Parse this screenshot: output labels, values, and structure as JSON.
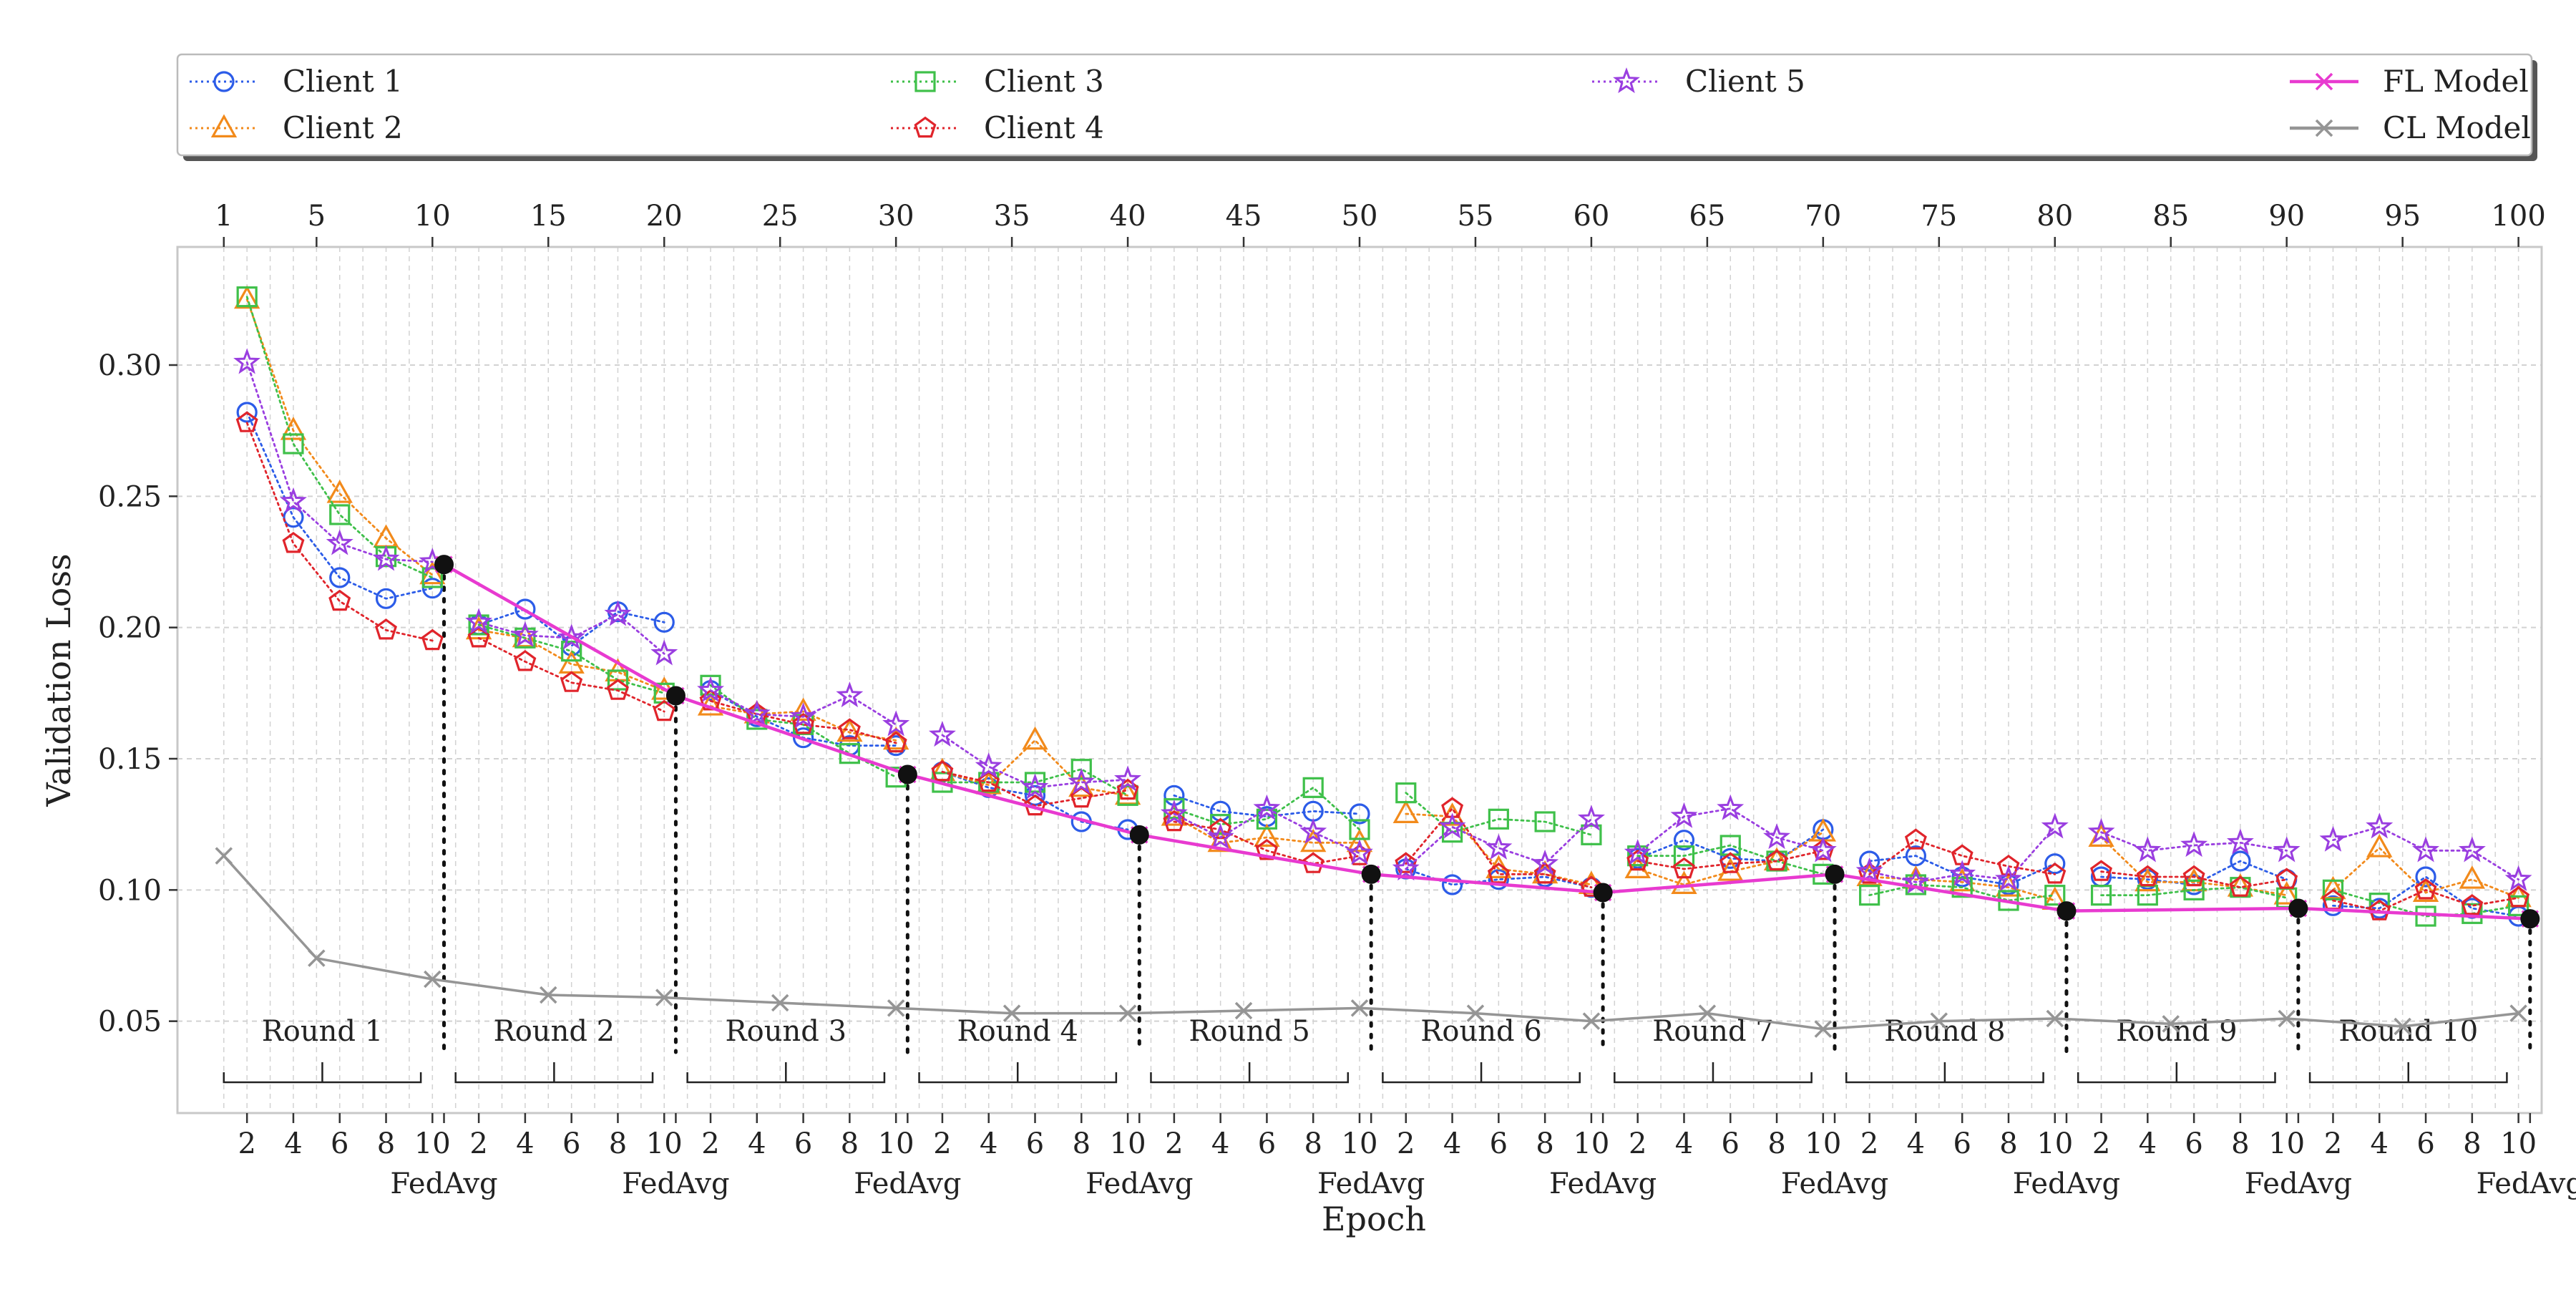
{
  "chart_data": {
    "type": "line",
    "xlabel": "Epoch",
    "ylabel": "Validation Loss",
    "ylim": [
      0.015,
      0.345
    ],
    "yticks": [
      0.05,
      0.1,
      0.15,
      0.2,
      0.25,
      0.3
    ],
    "ytick_labels": [
      "0.05",
      "0.10",
      "0.15",
      "0.20",
      "0.25",
      "0.30"
    ],
    "xlim": [
      -1,
      101
    ],
    "top_xticks": [
      1,
      5,
      10,
      15,
      20,
      25,
      30,
      35,
      40,
      45,
      50,
      55,
      60,
      65,
      70,
      75,
      80,
      85,
      90,
      95,
      100
    ],
    "bottom_tick_labels": [
      "2",
      "4",
      "6",
      "8",
      "10"
    ],
    "aggregation_label": "FedAvg",
    "rounds": [
      "Round 1",
      "Round 2",
      "Round 3",
      "Round 4",
      "Round 5",
      "Round 6",
      "Round 7",
      "Round 8",
      "Round 9",
      "Round 10"
    ],
    "grid": true,
    "legend_position": "top",
    "series": [
      {
        "name": "Client 1",
        "marker": "circle",
        "color": "#2c5ce8",
        "linestyle": "dotted",
        "rounds": [
          [
            0.282,
            0.242,
            0.219,
            0.211,
            0.215
          ],
          [
            0.201,
            0.207,
            0.193,
            0.206,
            0.202
          ],
          [
            0.176,
            0.166,
            0.158,
            0.155,
            0.155
          ],
          [
            0.145,
            0.139,
            0.136,
            0.126,
            0.123
          ],
          [
            0.136,
            0.13,
            0.128,
            0.13,
            0.129
          ],
          [
            0.108,
            0.102,
            0.104,
            0.105,
            0.101
          ],
          [
            0.112,
            0.119,
            0.112,
            0.111,
            0.123
          ],
          [
            0.111,
            0.113,
            0.105,
            0.102,
            0.11
          ],
          [
            0.105,
            0.104,
            0.102,
            0.111,
            0.104
          ],
          [
            0.094,
            0.093,
            0.105,
            0.093,
            0.09
          ]
        ]
      },
      {
        "name": "Client 2",
        "marker": "triangle",
        "color": "#f28a1b",
        "linestyle": "dotted",
        "rounds": [
          [
            0.325,
            0.275,
            0.251,
            0.234,
            0.22
          ],
          [
            0.199,
            0.196,
            0.186,
            0.183,
            0.176
          ],
          [
            0.17,
            0.167,
            0.168,
            0.16,
            0.157
          ],
          [
            0.145,
            0.14,
            0.157,
            0.139,
            0.136
          ],
          [
            0.128,
            0.118,
            0.12,
            0.118,
            0.118
          ],
          [
            0.129,
            0.128,
            0.108,
            0.106,
            0.102
          ],
          [
            0.108,
            0.102,
            0.107,
            0.111,
            0.122
          ],
          [
            0.105,
            0.104,
            0.103,
            0.101,
            0.096
          ],
          [
            0.12,
            0.103,
            0.103,
            0.101,
            0.098
          ],
          [
            0.1,
            0.116,
            0.099,
            0.104,
            0.097
          ]
        ]
      },
      {
        "name": "Client 3",
        "marker": "square",
        "color": "#3fc04a",
        "linestyle": "dotted",
        "rounds": [
          [
            0.326,
            0.27,
            0.243,
            0.227,
            0.219
          ],
          [
            0.201,
            0.196,
            0.191,
            0.18,
            0.175
          ],
          [
            0.178,
            0.165,
            0.163,
            0.152,
            0.143
          ],
          [
            0.141,
            0.141,
            0.141,
            0.146,
            0.136
          ],
          [
            0.131,
            0.125,
            0.127,
            0.139,
            0.123
          ],
          [
            0.137,
            0.122,
            0.127,
            0.126,
            0.121
          ],
          [
            0.113,
            0.113,
            0.117,
            0.111,
            0.106
          ],
          [
            0.098,
            0.102,
            0.101,
            0.096,
            0.098
          ],
          [
            0.098,
            0.098,
            0.1,
            0.101,
            0.097
          ],
          [
            0.1,
            0.095,
            0.09,
            0.091,
            0.094
          ]
        ]
      },
      {
        "name": "Client 4",
        "marker": "pentagon",
        "color": "#e0242b",
        "linestyle": "dotted",
        "rounds": [
          [
            0.278,
            0.232,
            0.21,
            0.199,
            0.195
          ],
          [
            0.196,
            0.187,
            0.179,
            0.176,
            0.168
          ],
          [
            0.172,
            0.167,
            0.163,
            0.161,
            0.156
          ],
          [
            0.145,
            0.141,
            0.132,
            0.135,
            0.138
          ],
          [
            0.126,
            0.123,
            0.115,
            0.11,
            0.113
          ],
          [
            0.11,
            0.131,
            0.106,
            0.106,
            0.101
          ],
          [
            0.111,
            0.108,
            0.11,
            0.111,
            0.115
          ],
          [
            0.106,
            0.119,
            0.113,
            0.109,
            0.106
          ],
          [
            0.107,
            0.105,
            0.105,
            0.101,
            0.104
          ],
          [
            0.096,
            0.092,
            0.1,
            0.094,
            0.097
          ]
        ]
      },
      {
        "name": "Client 5",
        "marker": "star",
        "color": "#9a3ee0",
        "linestyle": "dotted",
        "rounds": [
          [
            0.301,
            0.248,
            0.232,
            0.226,
            0.225
          ],
          [
            0.202,
            0.197,
            0.196,
            0.205,
            0.19
          ],
          [
            0.176,
            0.167,
            0.166,
            0.174,
            0.163
          ],
          [
            0.159,
            0.147,
            0.139,
            0.141,
            0.142
          ],
          [
            0.129,
            0.12,
            0.131,
            0.122,
            0.114
          ],
          [
            0.108,
            0.124,
            0.116,
            0.11,
            0.127
          ],
          [
            0.114,
            0.128,
            0.131,
            0.12,
            0.115
          ],
          [
            0.107,
            0.103,
            0.106,
            0.104,
            0.124
          ],
          [
            0.122,
            0.115,
            0.117,
            0.118,
            0.115
          ],
          [
            0.119,
            0.124,
            0.115,
            0.115,
            0.104
          ]
        ]
      },
      {
        "name": "FL Model",
        "marker": "x",
        "color": "#e83ad0",
        "linestyle": "solid",
        "x": [
          10,
          20,
          30,
          40,
          50,
          60,
          70,
          80,
          90,
          100
        ],
        "values": [
          0.224,
          0.174,
          0.144,
          0.121,
          0.106,
          0.099,
          0.106,
          0.092,
          0.093,
          0.089
        ]
      },
      {
        "name": "CL Model",
        "marker": "x",
        "color": "#959595",
        "linestyle": "solid",
        "x": [
          1,
          5,
          10,
          15,
          20,
          25,
          30,
          35,
          40,
          45,
          50,
          55,
          60,
          65,
          70,
          75,
          80,
          85,
          90,
          95,
          100
        ],
        "values": [
          0.113,
          0.074,
          0.066,
          0.06,
          0.059,
          0.057,
          0.055,
          0.053,
          0.053,
          0.054,
          0.055,
          0.053,
          0.05,
          0.053,
          0.047,
          0.05,
          0.051,
          0.049,
          0.051,
          0.048,
          0.053
        ]
      }
    ]
  }
}
